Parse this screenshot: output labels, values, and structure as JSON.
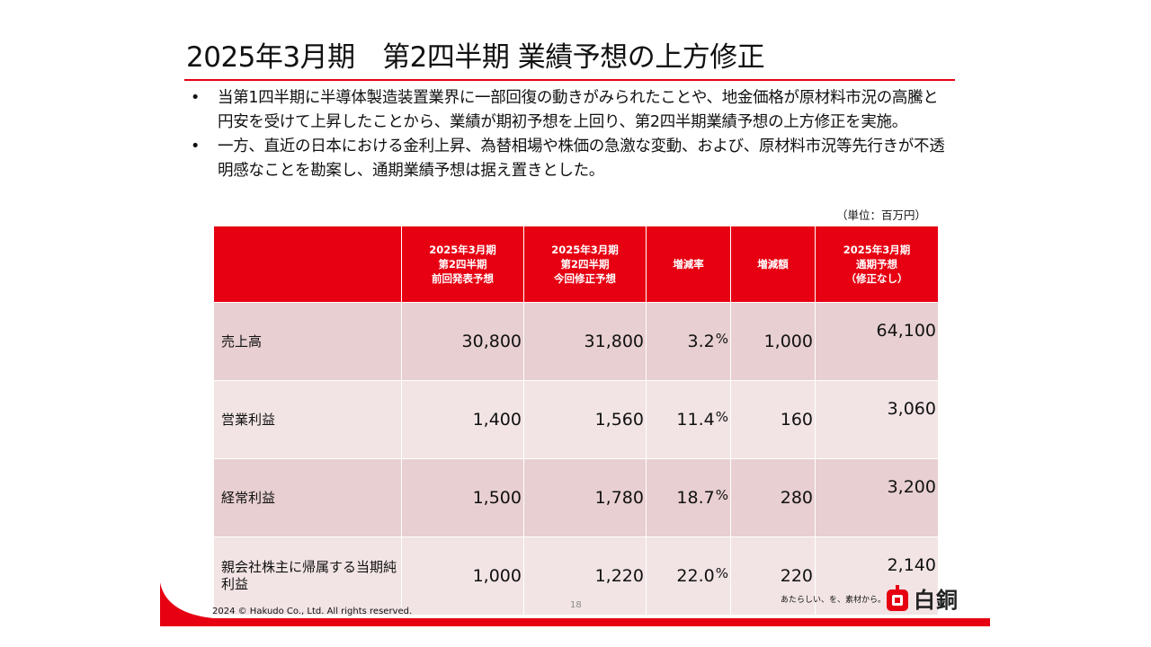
{
  "slide": {
    "title": "2025年3月期　第2四半期 業績予想の上方修正",
    "bullets": [
      "当第1四半期に半導体製造装置業界に一部回復の動きがみられたことや、地金価格が原材料市況の高騰と円安を受けて上昇したことから、業績が期初予想を上回り、第2四半期業績予想の上方修正を実施。",
      "一方、直近の日本における金利上昇、為替相場や株価の急激な変動、および、原材料市況等先行きが不透明感なことを勘案し、通期業績予想は据え置きとした。"
    ],
    "bullet_marker": "•",
    "unit_note": "（単位：百万円）"
  },
  "table": {
    "headers": [
      "",
      "2025年3月期\n第2四半期\n前回発表予想",
      "2025年3月期\n第2四半期\n今回修正予想",
      "増減率",
      "増減額",
      "2025年3月期\n通期予想\n（修正なし）"
    ],
    "percent_sign": "%",
    "rows": [
      {
        "label": "売上高",
        "previous": "30,800",
        "revised": "31,800",
        "rate": "3.2",
        "change": "1,000",
        "full_year": "64,100"
      },
      {
        "label": "営業利益",
        "previous": "1,400",
        "revised": "1,560",
        "rate": "11.4",
        "change": "160",
        "full_year": "3,060"
      },
      {
        "label": "経常利益",
        "previous": "1,500",
        "revised": "1,780",
        "rate": "18.7",
        "change": "280",
        "full_year": "3,200"
      },
      {
        "label": "親会社株主に帰属する当期純利益",
        "previous": "1,000",
        "revised": "1,220",
        "rate": "22.0",
        "change": "220",
        "full_year": "2,140"
      }
    ]
  },
  "footer": {
    "copyright": "2024 © Hakudo Co., Ltd. All rights reserved.",
    "page_number": "18",
    "tagline": "あたらしい、を、素材から。",
    "logo_text": "白銅"
  },
  "colors": {
    "accent": "#e60012",
    "row_dark": "#e8cfd1",
    "row_light": "#f2e4e5"
  }
}
